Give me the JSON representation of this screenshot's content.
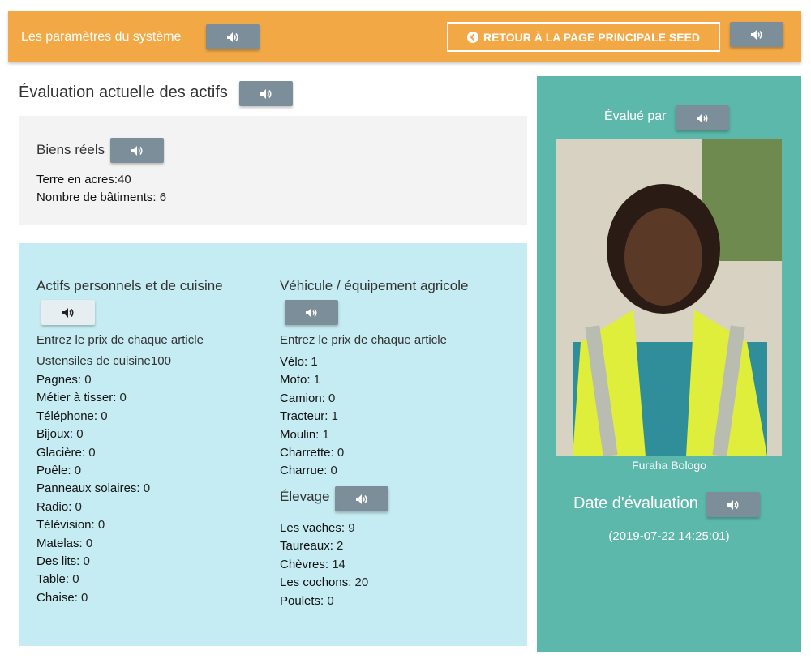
{
  "header": {
    "title": "Les paramètres du système",
    "back_label": "RETOUR À LA PAGE PRINCIPALE SEED",
    "icons": {
      "speaker": "speaker-icon",
      "back": "chevron-left-circle-icon"
    }
  },
  "colors": {
    "header": "#f2a945",
    "right_panel": "#5bb8ab",
    "personal_box": "#c5ecf2",
    "real_box": "#f3f3f3",
    "speaker_button": "#7d8e9b"
  },
  "main": {
    "title": "Évaluation actuelle des actifs",
    "real_estate": {
      "title": "Biens réels",
      "items": [
        {
          "label": "Terre en acres:",
          "value": "40"
        },
        {
          "label": "Nombre de bâtiments:",
          "value": " 6"
        }
      ]
    },
    "personal": {
      "title": "Actifs personnels et de cuisine",
      "hint": "Entrez le prix de chaque article",
      "first": "Ustensiles de cuisine100",
      "items": [
        {
          "label": "Pagnes:",
          "value": " 0"
        },
        {
          "label": "Métier à tisser:",
          "value": " 0"
        },
        {
          "label": "Téléphone:",
          "value": " 0"
        },
        {
          "label": "Bijoux:",
          "value": " 0"
        },
        {
          "label": "Glacière:",
          "value": " 0"
        },
        {
          "label": "Poêle:",
          "value": " 0"
        },
        {
          "label": "Panneaux solaires:",
          "value": " 0"
        },
        {
          "label": "Radio:",
          "value": " 0"
        },
        {
          "label": "Télévision:",
          "value": " 0"
        },
        {
          "label": "Matelas:",
          "value": " 0"
        },
        {
          "label": "Des lits:",
          "value": " 0"
        },
        {
          "label": "Table:",
          "value": " 0"
        },
        {
          "label": "Chaise:",
          "value": " 0"
        }
      ]
    },
    "vehicle": {
      "title": "Véhicule / équipement agricole",
      "hint": "Entrez le prix de chaque article",
      "items": [
        {
          "label": "Vélo:",
          "value": " 1"
        },
        {
          "label": "Moto:",
          "value": " 1"
        },
        {
          "label": "Camion:",
          "value": " 0"
        },
        {
          "label": "Tracteur:",
          "value": " 1"
        },
        {
          "label": "Moulin:",
          "value": " 1"
        },
        {
          "label": "Charrette:",
          "value": " 0"
        },
        {
          "label": "Charrue:",
          "value": " 0"
        }
      ]
    },
    "livestock": {
      "title": "Élevage",
      "items": [
        {
          "label": "Les vaches:",
          "value": " 9"
        },
        {
          "label": "Taureaux:",
          "value": " 2"
        },
        {
          "label": "Chèvres:",
          "value": " 14"
        },
        {
          "label": "Les cochons:",
          "value": " 20"
        },
        {
          "label": "Poulets:",
          "value": " 0"
        }
      ]
    }
  },
  "evaluator": {
    "label": "Évalué par",
    "name": "Furaha Bologo",
    "date_label": "Date d'évaluation",
    "date": "(2019-07-22 14:25:01)"
  }
}
